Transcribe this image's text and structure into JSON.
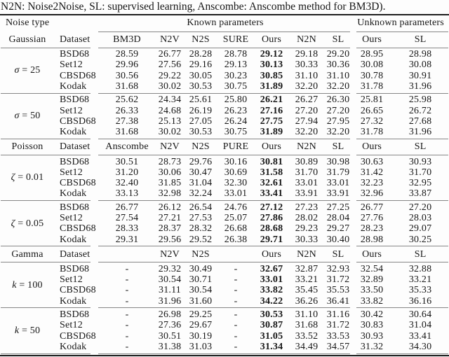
{
  "caption": "N2N: Noise2Noise, SL: supervised learning, Anscombe: Anscombe method for BM3D).",
  "header": {
    "noise_type": "Noise type",
    "known": "Known parameters",
    "unknown": "Unknown parameters",
    "dataset": "Dataset"
  },
  "bold_value_index": 4,
  "sections": [
    {
      "noise": "Gaussian",
      "methods": [
        "BM3D",
        "N2V",
        "N2S",
        "SURE",
        "Ours",
        "N2N",
        "SL",
        "Ours",
        "SL"
      ],
      "blocks": [
        {
          "symbol": "σ",
          "rest": "= 25",
          "rows": [
            {
              "dataset": "BSD68",
              "values": [
                "28.59",
                "26.77",
                "28.28",
                "28.78",
                "29.12",
                "29.18",
                "29.20",
                "28.95",
                "28.98"
              ]
            },
            {
              "dataset": "Set12",
              "values": [
                "29.96",
                "27.56",
                "29.16",
                "29.13",
                "30.13",
                "30.33",
                "30.36",
                "30.08",
                "30.08"
              ]
            },
            {
              "dataset": "CBSD68",
              "values": [
                "30.56",
                "29.22",
                "30.05",
                "30.23",
                "30.85",
                "31.10",
                "31.10",
                "30.78",
                "30.91"
              ]
            },
            {
              "dataset": "Kodak",
              "values": [
                "31.68",
                "30.02",
                "30.53",
                "30.75",
                "31.89",
                "32.20",
                "32.20",
                "31.78",
                "31.96"
              ]
            }
          ]
        },
        {
          "symbol": "σ",
          "rest": "= 50",
          "rows": [
            {
              "dataset": "BSD68",
              "values": [
                "25.62",
                "24.34",
                "25.61",
                "25.80",
                "26.21",
                "26.27",
                "26.30",
                "25.81",
                "25.98"
              ]
            },
            {
              "dataset": "Set12",
              "values": [
                "26.33",
                "24.68",
                "26.19",
                "26.23",
                "27.16",
                "27.20",
                "27.20",
                "26.65",
                "26.72"
              ]
            },
            {
              "dataset": "CBSD68",
              "values": [
                "27.38",
                "25.13",
                "27.05",
                "26.24",
                "27.75",
                "27.94",
                "27.95",
                "27.32",
                "27.68"
              ]
            },
            {
              "dataset": "Kodak",
              "values": [
                "31.68",
                "30.02",
                "30.53",
                "30.75",
                "31.89",
                "32.20",
                "32.20",
                "31.78",
                "31.96"
              ]
            }
          ]
        }
      ]
    },
    {
      "noise": "Poisson",
      "methods": [
        "Anscombe",
        "N2V",
        "N2S",
        "PURE",
        "Ours",
        "N2N",
        "SL",
        "Ours",
        "SL"
      ],
      "blocks": [
        {
          "symbol": "ζ",
          "rest": "= 0.01",
          "rows": [
            {
              "dataset": "BSD68",
              "values": [
                "30.51",
                "28.73",
                "29.76",
                "30.16",
                "30.81",
                "30.89",
                "30.98",
                "30.63",
                "30.93"
              ]
            },
            {
              "dataset": "Set12",
              "values": [
                "31.20",
                "30.06",
                "30.47",
                "30.69",
                "31.58",
                "31.70",
                "31.79",
                "31.42",
                "31.70"
              ]
            },
            {
              "dataset": "CBSD68",
              "values": [
                "32.40",
                "31.85",
                "31.04",
                "32.30",
                "32.61",
                "33.01",
                "33.01",
                "32.23",
                "32.95"
              ]
            },
            {
              "dataset": "Kodak",
              "values": [
                "33.13",
                "32.98",
                "32.24",
                "33.01",
                "33.41",
                "33.91",
                "33.91",
                "32.96",
                "33.87"
              ]
            }
          ]
        },
        {
          "symbol": "ζ",
          "rest": "= 0.05",
          "rows": [
            {
              "dataset": "BSD68",
              "values": [
                "26.77",
                "26.12",
                "26.54",
                "24.76",
                "27.12",
                "27.23",
                "27.25",
                "26.77",
                "27.20"
              ]
            },
            {
              "dataset": "Set12",
              "values": [
                "27.54",
                "27.21",
                "27.53",
                "25.07",
                "27.86",
                "28.02",
                "28.04",
                "27.76",
                "28.03"
              ]
            },
            {
              "dataset": "CBSD68",
              "values": [
                "28.33",
                "28.37",
                "28.32",
                "26.68",
                "28.68",
                "29.23",
                "29.27",
                "28.23",
                "29.07"
              ]
            },
            {
              "dataset": "Kodak",
              "values": [
                "29.31",
                "29.56",
                "29.52",
                "26.38",
                "29.71",
                "30.33",
                "30.40",
                "28.98",
                "30.25"
              ]
            }
          ]
        }
      ]
    },
    {
      "noise": "Gamma",
      "methods": [
        "",
        "N2V",
        "N2S",
        "",
        "Ours",
        "N2N",
        "SL",
        "Ours",
        "SL"
      ],
      "blocks": [
        {
          "symbol": "k",
          "rest": "= 100",
          "rows": [
            {
              "dataset": "BSD68",
              "values": [
                "-",
                "29.32",
                "30.49",
                "-",
                "32.67",
                "32.87",
                "32.93",
                "32.54",
                "32.88"
              ]
            },
            {
              "dataset": "Set12",
              "values": [
                "-",
                "30.54",
                "30.71",
                "-",
                "33.01",
                "33.21",
                "31.72",
                "32.89",
                "33.21"
              ]
            },
            {
              "dataset": "CBSD68",
              "values": [
                "-",
                "31.11",
                "30.54",
                "-",
                "33.82",
                "35.45",
                "35.53",
                "33.50",
                "35.33"
              ]
            },
            {
              "dataset": "Kodak",
              "values": [
                "-",
                "31.96",
                "31.60",
                "-",
                "34.22",
                "36.26",
                "36.41",
                "33.82",
                "36.16"
              ]
            }
          ]
        },
        {
          "symbol": "k",
          "rest": "= 50",
          "rows": [
            {
              "dataset": "BSD68",
              "values": [
                "-",
                "26.98",
                "29.25",
                "-",
                "30.53",
                "31.10",
                "31.16",
                "30.42",
                "30.64"
              ]
            },
            {
              "dataset": "Set12",
              "values": [
                "-",
                "27.36",
                "29.67",
                "-",
                "30.87",
                "31.68",
                "31.72",
                "30.83",
                "31.04"
              ]
            },
            {
              "dataset": "CBSD68",
              "values": [
                "-",
                "30.51",
                "30.19",
                "-",
                "31.05",
                "33.52",
                "33.53",
                "30.93",
                "33.41"
              ]
            },
            {
              "dataset": "Kodak",
              "values": [
                "-",
                "31.38",
                "31.03",
                "-",
                "31.34",
                "34.49",
                "34.57",
                "31.32",
                "34.30"
              ]
            }
          ]
        }
      ]
    }
  ]
}
